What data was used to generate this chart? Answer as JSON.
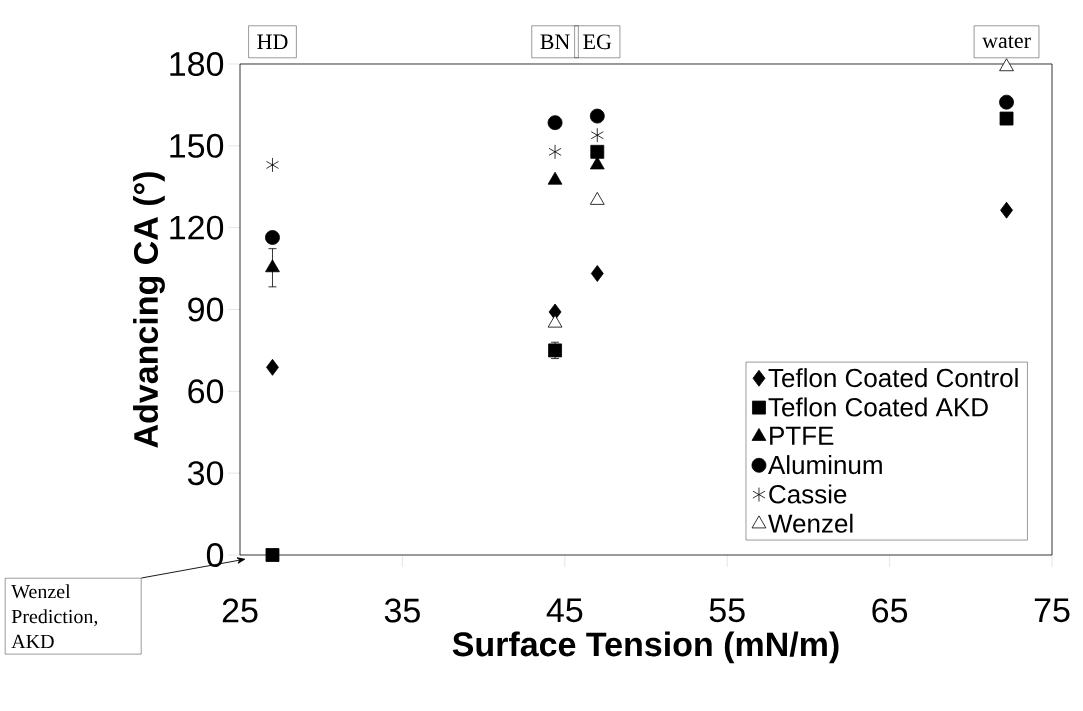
{
  "chart_data": {
    "type": "scatter",
    "xlabel": "Surface Tension (mN/m)",
    "ylabel": "Advancing CA (°)",
    "xlim": [
      25,
      75
    ],
    "xticks": [
      25,
      35,
      45,
      55,
      65,
      75
    ],
    "ylim": [
      0,
      180
    ],
    "yticks": [
      0,
      30,
      60,
      90,
      120,
      150,
      180
    ],
    "grid": false,
    "legend": "bottom right",
    "x": [
      27,
      44.4,
      47,
      72.2
    ],
    "series": [
      {
        "name": "Teflon Coated Control",
        "color": "#000000",
        "marker": "diamond",
        "values": [
          68.8,
          89.1,
          103.2,
          126.4
        ]
      },
      {
        "name": "Teflon Coated AKD",
        "color": "#000000",
        "marker": "square",
        "values": [
          0,
          75,
          147.8,
          160
        ],
        "errors": [
          null,
          3,
          null,
          null
        ]
      },
      {
        "name": "PTFE",
        "color": "#000000",
        "marker": "triangle",
        "values": [
          105.3,
          137.4,
          143,
          null
        ],
        "errors": [
          7,
          null,
          null,
          null
        ]
      },
      {
        "name": "Aluminum",
        "color": "#000000",
        "marker": "circle",
        "values": [
          116.4,
          158.5,
          160.9,
          166
        ]
      },
      {
        "name": "Cassie",
        "color": "#000000",
        "marker": "cross",
        "values": [
          143,
          147.8,
          153.9,
          null
        ]
      },
      {
        "name": "Wenzel",
        "color": "#ffffff",
        "marker": "triangle",
        "values": [
          null,
          85,
          130,
          179
        ]
      }
    ],
    "annotations": [
      "HD",
      "BN",
      "EG",
      "water",
      "Wenzel Prediction, AKD"
    ]
  }
}
